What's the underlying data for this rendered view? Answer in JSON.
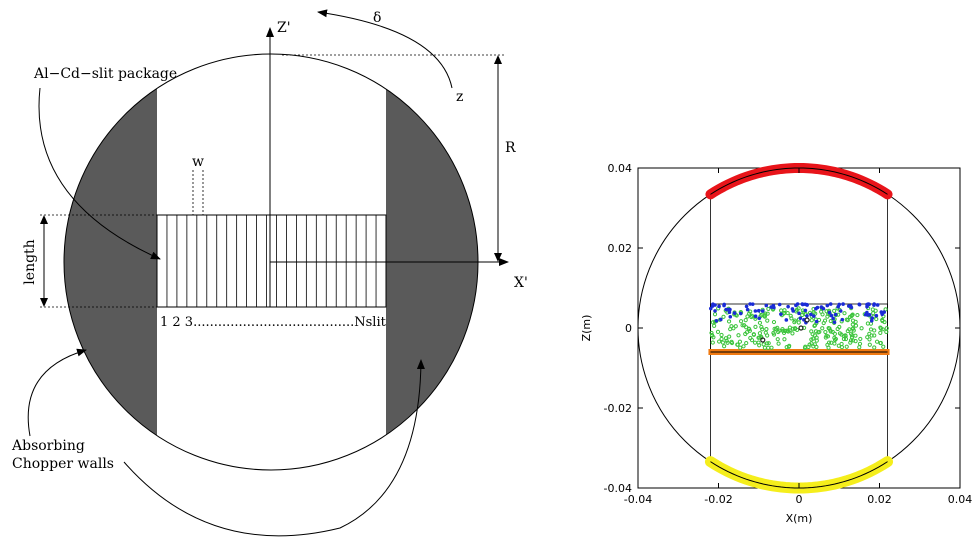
{
  "diagram": {
    "labels": {
      "z_prime": "Z'",
      "x_prime": "X'",
      "delta": "δ",
      "z": "z",
      "R": "R",
      "w": "w",
      "length": "length",
      "slit_package": "Al−Cd−slit package",
      "slit_numbers": "1 2 3.......................................Nslit",
      "absorbing_line1": "Absorbing",
      "absorbing_line2": "Chopper walls"
    },
    "colors": {
      "wall_fill": "#5a5a5a",
      "line": "#000000"
    }
  },
  "chart_data": {
    "type": "scatter",
    "title": "",
    "xlabel": "X(m)",
    "ylabel": "Z(m)",
    "xlim": [
      -0.04,
      0.04
    ],
    "ylim": [
      -0.04,
      0.04
    ],
    "xticks": [
      "-0.04",
      "-0.02",
      "0",
      "0.02",
      "0.04"
    ],
    "yticks": [
      "0.04",
      "0.02",
      "0",
      "-0.02",
      "-0.04"
    ],
    "grid": false,
    "circle_radius": 0.04,
    "channel_x": [
      -0.022,
      0.022
    ],
    "slit_band_z": [
      -0.006,
      0.006
    ],
    "colors": {
      "top_arc": "#e8141a",
      "bottom_arc": "#f5ee1c",
      "bottom_band": "#f07a12",
      "blue_points": "#1a2bd6",
      "green_points": "#3cc43c",
      "dark_points": "#222222"
    },
    "series": [
      {
        "kind": "top-arc",
        "z_center": 0.04,
        "x_range": [
          -0.022,
          0.022
        ]
      },
      {
        "kind": "bottom-arc",
        "z_center": -0.04,
        "x_range": [
          -0.022,
          0.022
        ]
      },
      {
        "kind": "band",
        "z": -0.006,
        "x_range": [
          -0.022,
          0.022
        ]
      },
      {
        "kind": "blue-scatter",
        "z_range": [
          0.001,
          0.006
        ],
        "x_range": [
          -0.022,
          0.022
        ],
        "count": 90
      },
      {
        "kind": "green-scatter",
        "z_range": [
          -0.005,
          0.005
        ],
        "x_range": [
          -0.022,
          0.022
        ],
        "count": 300
      }
    ]
  }
}
